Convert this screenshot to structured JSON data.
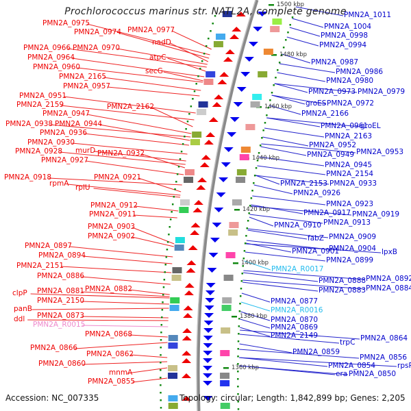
{
  "title": "Prochlorococcus marinus str. NATL2A, complete genome",
  "footer": {
    "accession": "Accession: NC_007335",
    "summary": "Topology: circular; Length: 1,842,899 bp; Genes: 2,205"
  },
  "colors": {
    "forward_strand_label": "#ee0000",
    "reverse_strand_label": "#0000cc",
    "forward_rna_label": "#ee88cc",
    "reverse_rna_label": "#22bbee",
    "backbone": "#888888",
    "tick": "#118811"
  },
  "scale_ticks": [
    "1500 kbp",
    "1480 kbp",
    "1460 kbp",
    "1440 kbp",
    "1420 kbp",
    "1400 kbp",
    "1380 kbp",
    "1360 kbp"
  ],
  "left_labels": [
    {
      "text": "PMN2A_0975"
    },
    {
      "text": "PMN2A_0974"
    },
    {
      "text": "PMN2A_0977"
    },
    {
      "text": "nadD"
    },
    {
      "text": "PMN2A_0966"
    },
    {
      "text": "PMN2A_0970"
    },
    {
      "text": "atpC"
    },
    {
      "text": "PMN2A_0964"
    },
    {
      "text": "PMN2A_0960"
    },
    {
      "text": "secG"
    },
    {
      "text": "PMN2A_2165"
    },
    {
      "text": "PMN2A_0957"
    },
    {
      "text": "PMN2A_0951"
    },
    {
      "text": "PMN2A_2159"
    },
    {
      "text": "PMN2A_2162"
    },
    {
      "text": "PMN2A_0947"
    },
    {
      "text": "PMN2A_0938"
    },
    {
      "text": "PMN2A_0944"
    },
    {
      "text": "PMN2A_0936"
    },
    {
      "text": "PMN2A_0930"
    },
    {
      "text": "PMN2A_0928"
    },
    {
      "text": "murD"
    },
    {
      "text": "PMN2A_0932"
    },
    {
      "text": "PMN2A_0927"
    },
    {
      "text": "PMN2A_0918"
    },
    {
      "text": "PMN2A_0921"
    },
    {
      "text": "rpmA"
    },
    {
      "text": "rplU"
    },
    {
      "text": "PMN2A_0912"
    },
    {
      "text": "PMN2A_0911"
    },
    {
      "text": "PMN2A_0903"
    },
    {
      "text": "PMN2A_0902"
    },
    {
      "text": "PMN2A_0897"
    },
    {
      "text": "PMN2A_0894"
    },
    {
      "text": "PMN2A_2151"
    },
    {
      "text": "PMN2A_0886"
    },
    {
      "text": "PMN2A_0882"
    },
    {
      "text": "clpP"
    },
    {
      "text": "PMN2A_0881"
    },
    {
      "text": "PMN2A_2150"
    },
    {
      "text": "panB"
    },
    {
      "text": "PMN2A_0873"
    },
    {
      "text": "ddl"
    },
    {
      "text": "PMN2A_R0015"
    },
    {
      "text": "PMN2A_0868"
    },
    {
      "text": "PMN2A_0866"
    },
    {
      "text": "PMN2A_0862"
    },
    {
      "text": "PMN2A_0860"
    },
    {
      "text": "mnmA"
    },
    {
      "text": "PMN2A_0855"
    }
  ],
  "right_labels": [
    {
      "text": "PMN2A_1011"
    },
    {
      "text": "PMN2A_1004"
    },
    {
      "text": "PMN2A_0998"
    },
    {
      "text": "PMN2A_0994"
    },
    {
      "text": "PMN2A_0987"
    },
    {
      "text": "PMN2A_0986"
    },
    {
      "text": "PMN2A_0980"
    },
    {
      "text": "PMN2A_0973"
    },
    {
      "text": "PMN2A_0979"
    },
    {
      "text": "groES"
    },
    {
      "text": "PMN2A_0972"
    },
    {
      "text": "PMN2A_2166"
    },
    {
      "text": "PMN2A_0961"
    },
    {
      "text": "groEL"
    },
    {
      "text": "PMN2A_2163"
    },
    {
      "text": "PMN2A_0952"
    },
    {
      "text": "PMN2A_0949"
    },
    {
      "text": "PMN2A_0953"
    },
    {
      "text": "PMN2A_0945"
    },
    {
      "text": "PMN2A_2154"
    },
    {
      "text": "PMN2A_2153"
    },
    {
      "text": "PMN2A_0933"
    },
    {
      "text": "PMN2A_0926"
    },
    {
      "text": "PMN2A_0923"
    },
    {
      "text": "PMN2A_0917"
    },
    {
      "text": "PMN2A_0919"
    },
    {
      "text": "PMN2A_0910"
    },
    {
      "text": "PMN2A_0913"
    },
    {
      "text": "fabZ"
    },
    {
      "text": "PMN2A_0909"
    },
    {
      "text": "PMN2A_0901"
    },
    {
      "text": "PMN2A_0904"
    },
    {
      "text": "lpxB"
    },
    {
      "text": "PMN2A_0899"
    },
    {
      "text": "PMN2A_R0017"
    },
    {
      "text": "PMN2A_0888"
    },
    {
      "text": "PMN2A_0892"
    },
    {
      "text": "PMN2A_0883"
    },
    {
      "text": "PMN2A_0884"
    },
    {
      "text": "PMN2A_0877"
    },
    {
      "text": "PMN2A_R0016"
    },
    {
      "text": "PMN2A_0870"
    },
    {
      "text": "PMN2A_0869"
    },
    {
      "text": "PMN2A_2149"
    },
    {
      "text": "trpC"
    },
    {
      "text": "PMN2A_0864"
    },
    {
      "text": "PMN2A_0859"
    },
    {
      "text": "PMN2A_0856"
    },
    {
      "text": "PMN2A_0854"
    },
    {
      "text": "rpsP"
    },
    {
      "text": "era"
    },
    {
      "text": "PMN2A_0850"
    }
  ]
}
